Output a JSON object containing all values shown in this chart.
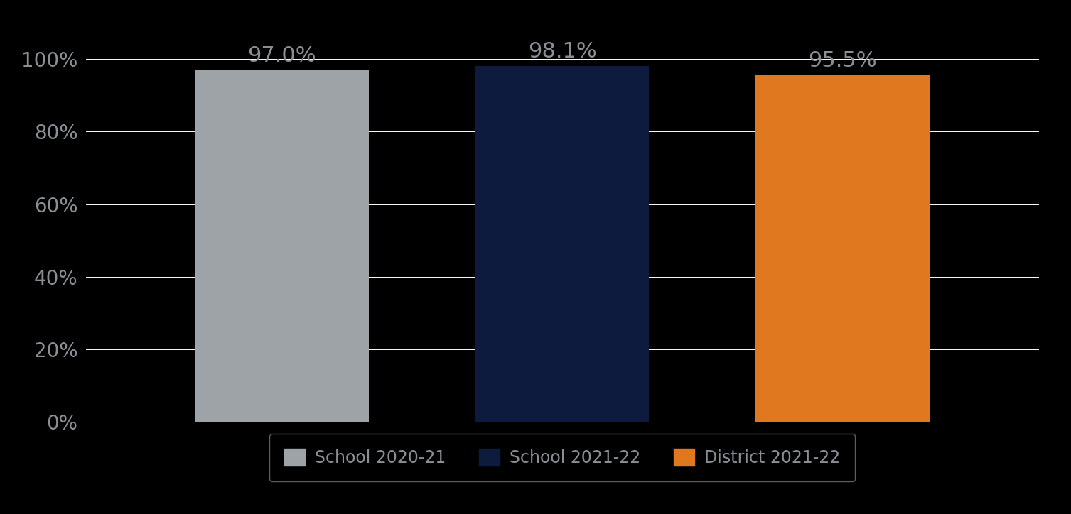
{
  "categories": [
    "School 2020-21",
    "School 2021-22",
    "District 2021-22"
  ],
  "values": [
    97.0,
    98.1,
    95.5
  ],
  "bar_colors": [
    "#9EA3A8",
    "#0D1B3E",
    "#E07820"
  ],
  "value_labels": [
    "97.0%",
    "98.1%",
    "95.5%"
  ],
  "ylim": [
    0,
    100
  ],
  "yticks": [
    0,
    20,
    40,
    60,
    80,
    100
  ],
  "ytick_labels": [
    "0%",
    "20%",
    "40%",
    "60%",
    "80%",
    "100%"
  ],
  "background_color": "#000000",
  "text_color": "#8A8F95",
  "grid_color": "#FFFFFF",
  "label_fontsize": 22,
  "tick_fontsize": 20,
  "legend_fontsize": 17,
  "bar_width": 0.62
}
